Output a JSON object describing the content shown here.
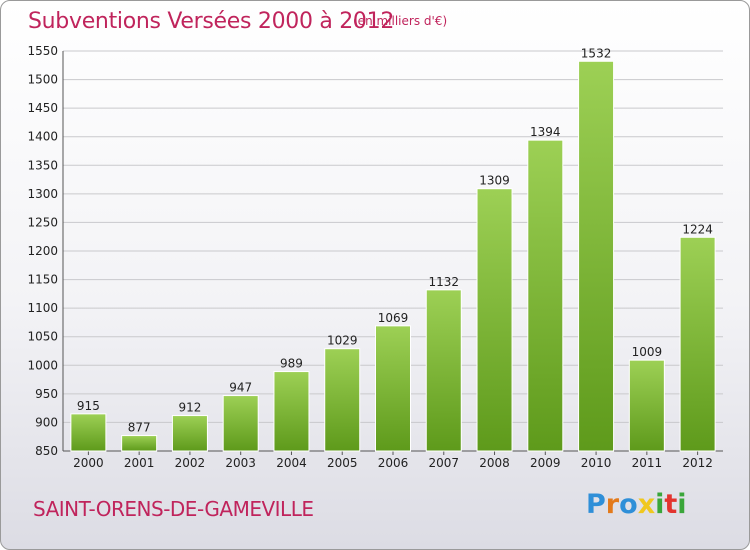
{
  "header": {
    "title": "Subventions Versées 2000 à 2012",
    "unit": "(en milliers d'€)"
  },
  "footer": {
    "commune": "SAINT-ORENS-DE-GAMEVILLE",
    "logo_letters": [
      "P",
      "r",
      "o",
      "x",
      "i",
      "t",
      "i"
    ]
  },
  "colors": {
    "accent": "#c0245c",
    "bar_light": "#9dd055",
    "bar_dark": "#5e9a1b"
  },
  "chart_data": {
    "type": "bar",
    "title": "Subventions Versées 2000 à 2012",
    "subtitle": "(en milliers d'€)",
    "categories": [
      "2000",
      "2001",
      "2002",
      "2003",
      "2004",
      "2005",
      "2006",
      "2007",
      "2008",
      "2009",
      "2010",
      "2011",
      "2012"
    ],
    "values": [
      915,
      877,
      912,
      947,
      989,
      1029,
      1069,
      1132,
      1309,
      1394,
      1532,
      1009,
      1224
    ],
    "ylim": [
      850,
      1550
    ],
    "yticks": [
      850,
      900,
      950,
      1000,
      1050,
      1100,
      1150,
      1200,
      1250,
      1300,
      1350,
      1400,
      1450,
      1500,
      1550
    ],
    "grid": true,
    "xlabel": "",
    "ylabel": ""
  }
}
